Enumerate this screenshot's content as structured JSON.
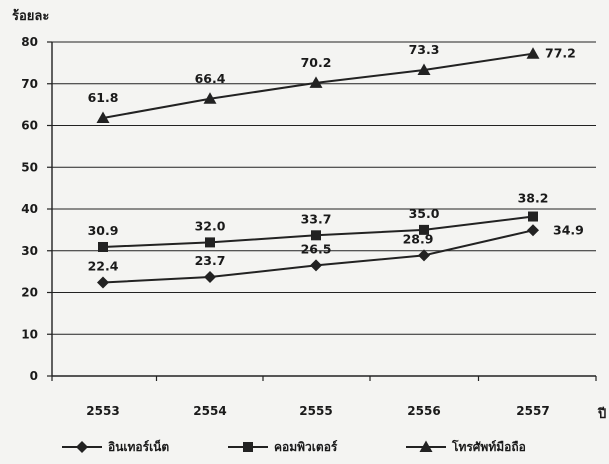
{
  "chart_data": {
    "type": "line",
    "ylabel": "ร้อยละ",
    "xlabel": "ปี",
    "categories": [
      "2553",
      "2554",
      "2555",
      "2556",
      "2557"
    ],
    "ylim": [
      0,
      80
    ],
    "yticks": [
      0,
      10,
      20,
      30,
      40,
      50,
      60,
      70,
      80
    ],
    "grid": "horizontal",
    "legend_position": "bottom",
    "series": [
      {
        "name": "อินเทอร์เน็ต",
        "marker": "diamond",
        "values": [
          22.4,
          23.7,
          26.5,
          28.9,
          34.9
        ],
        "labels": [
          "22.4",
          "23.7",
          "26.5",
          "28.9",
          "34.9"
        ]
      },
      {
        "name": "คอมพิวเตอร์",
        "marker": "square",
        "values": [
          30.9,
          32.0,
          33.7,
          35.0,
          38.2
        ],
        "labels": [
          "30.9",
          "32.0",
          "33.7",
          "35.0",
          "38.2"
        ]
      },
      {
        "name": "โทรศัพท์มือถือ",
        "marker": "triangle",
        "values": [
          61.8,
          66.4,
          70.2,
          73.3,
          77.2
        ],
        "labels": [
          "61.8",
          "66.4",
          "70.2",
          "73.3",
          "77.2"
        ]
      }
    ]
  }
}
